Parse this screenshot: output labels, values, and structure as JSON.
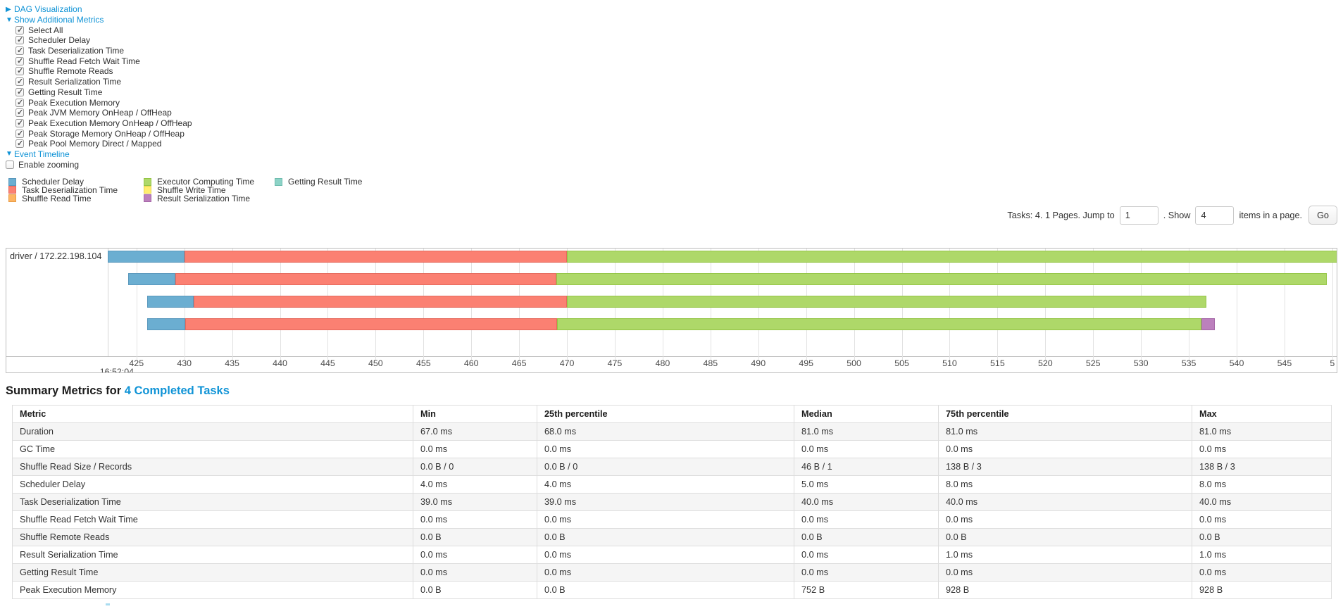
{
  "controls": {
    "dag": {
      "label": "DAG Visualization",
      "expanded": false
    },
    "metrics_toggle": {
      "label": "Show Additional Metrics",
      "expanded": true
    },
    "metrics_items": [
      {
        "label": "Select All",
        "checked": true
      },
      {
        "label": "Scheduler Delay",
        "checked": true
      },
      {
        "label": "Task Deserialization Time",
        "checked": true
      },
      {
        "label": "Shuffle Read Fetch Wait Time",
        "checked": true
      },
      {
        "label": "Shuffle Remote Reads",
        "checked": true
      },
      {
        "label": "Result Serialization Time",
        "checked": true
      },
      {
        "label": "Getting Result Time",
        "checked": true
      },
      {
        "label": "Peak Execution Memory",
        "checked": true
      },
      {
        "label": "Peak JVM Memory OnHeap / OffHeap",
        "checked": true
      },
      {
        "label": "Peak Execution Memory OnHeap / OffHeap",
        "checked": true
      },
      {
        "label": "Peak Storage Memory OnHeap / OffHeap",
        "checked": true
      },
      {
        "label": "Peak Pool Memory Direct / Mapped",
        "checked": true
      }
    ],
    "event_timeline_toggle": {
      "label": "Event Timeline",
      "expanded": true
    },
    "enable_zooming": {
      "label": "Enable zooming",
      "checked": false
    }
  },
  "legend": {
    "columns": [
      [
        {
          "label": "Scheduler Delay",
          "key": "scheduler"
        },
        {
          "label": "Task Deserialization Time",
          "key": "deserialization"
        },
        {
          "label": "Shuffle Read Time",
          "key": "shuffle_read"
        }
      ],
      [
        {
          "label": "Executor Computing Time",
          "key": "executor"
        },
        {
          "label": "Shuffle Write Time",
          "key": "shuffle_write"
        },
        {
          "label": "Result Serialization Time",
          "key": "result_serialization"
        }
      ],
      [
        {
          "label": "Getting Result Time",
          "key": "getting_result"
        }
      ]
    ]
  },
  "pagination": {
    "text_before": "Tasks: 4. 1 Pages. Jump to",
    "jump_value": "1",
    "text_mid": ". Show",
    "show_value": "4",
    "text_after": "items in a page.",
    "go_label": "Go"
  },
  "timeline": {
    "group_label": "driver / 172.22.198.104",
    "colors": {
      "scheduler": {
        "fill": "#6BAED1",
        "stroke": "#5897BC"
      },
      "deserialization": {
        "fill": "#FB8072",
        "stroke": "#E5695C"
      },
      "shuffle_read": {
        "fill": "#FDB462",
        "stroke": "#E79A43"
      },
      "executor": {
        "fill": "#AED869",
        "stroke": "#94C545"
      },
      "shuffle_write": {
        "fill": "#FFED6F",
        "stroke": "#E8D44F"
      },
      "result_serialization": {
        "fill": "#BC80BD",
        "stroke": "#A465A6"
      },
      "getting_result": {
        "fill": "#8DD3C7",
        "stroke": "#6FBCAE"
      }
    },
    "axis": {
      "min": 422.0,
      "max": 550.6,
      "tick_start": 425,
      "tick_step": 5,
      "tick_labels": [
        "425",
        "430",
        "435",
        "440",
        "445",
        "450",
        "455",
        "460",
        "465",
        "470",
        "475",
        "480",
        "485",
        "490",
        "495",
        "500",
        "505",
        "510",
        "515",
        "520",
        "525",
        "530",
        "535",
        "540",
        "545",
        "5"
      ],
      "start_time_label": "16:52:04"
    },
    "bars": [
      {
        "start": 422.0,
        "segments": [
          {
            "type": "scheduler",
            "end": 430.0
          },
          {
            "type": "deserialization",
            "end": 470.0
          },
          {
            "type": "executor",
            "end": 550.6
          }
        ]
      },
      {
        "start": 424.1,
        "segments": [
          {
            "type": "scheduler",
            "end": 429.1
          },
          {
            "type": "deserialization",
            "end": 468.9
          },
          {
            "type": "executor",
            "end": 549.4
          }
        ]
      },
      {
        "start": 426.1,
        "segments": [
          {
            "type": "scheduler",
            "end": 431.0
          },
          {
            "type": "deserialization",
            "end": 470.0
          },
          {
            "type": "executor",
            "end": 536.8
          }
        ]
      },
      {
        "start": 426.1,
        "segments": [
          {
            "type": "scheduler",
            "end": 430.1
          },
          {
            "type": "deserialization",
            "end": 469.0
          },
          {
            "type": "executor",
            "end": 536.3
          },
          {
            "type": "result_serialization",
            "end": 537.7
          }
        ]
      }
    ]
  },
  "summary": {
    "heading_prefix": "Summary Metrics for ",
    "heading_link": "4 Completed Tasks",
    "table": {
      "headers": [
        "Metric",
        "Min",
        "25th percentile",
        "Median",
        "75th percentile",
        "Max"
      ],
      "rows": [
        {
          "metric": "Duration",
          "values": [
            "67.0 ms",
            "68.0 ms",
            "81.0 ms",
            "81.0 ms",
            "81.0 ms"
          ]
        },
        {
          "metric": "GC Time",
          "values": [
            "0.0 ms",
            "0.0 ms",
            "0.0 ms",
            "0.0 ms",
            "0.0 ms"
          ]
        },
        {
          "metric": "Shuffle Read Size / Records",
          "values": [
            "0.0 B / 0",
            "0.0 B / 0",
            "46 B / 1",
            "138 B / 3",
            "138 B / 3"
          ]
        },
        {
          "metric": "Scheduler Delay",
          "values": [
            "4.0 ms",
            "4.0 ms",
            "5.0 ms",
            "8.0 ms",
            "8.0 ms"
          ]
        },
        {
          "metric": "Task Deserialization Time",
          "values": [
            "39.0 ms",
            "39.0 ms",
            "40.0 ms",
            "40.0 ms",
            "40.0 ms"
          ]
        },
        {
          "metric": "Shuffle Read Fetch Wait Time",
          "values": [
            "0.0 ms",
            "0.0 ms",
            "0.0 ms",
            "0.0 ms",
            "0.0 ms"
          ]
        },
        {
          "metric": "Shuffle Remote Reads",
          "values": [
            "0.0 B",
            "0.0 B",
            "0.0 B",
            "0.0 B",
            "0.0 B"
          ]
        },
        {
          "metric": "Result Serialization Time",
          "values": [
            "0.0 ms",
            "0.0 ms",
            "0.0 ms",
            "1.0 ms",
            "1.0 ms"
          ]
        },
        {
          "metric": "Getting Result Time",
          "values": [
            "0.0 ms",
            "0.0 ms",
            "0.0 ms",
            "0.0 ms",
            "0.0 ms"
          ]
        },
        {
          "metric": "Peak Execution Memory",
          "values": [
            "0.0 B",
            "0.0 B",
            "752 B",
            "928 B",
            "928 B"
          ]
        }
      ]
    }
  }
}
